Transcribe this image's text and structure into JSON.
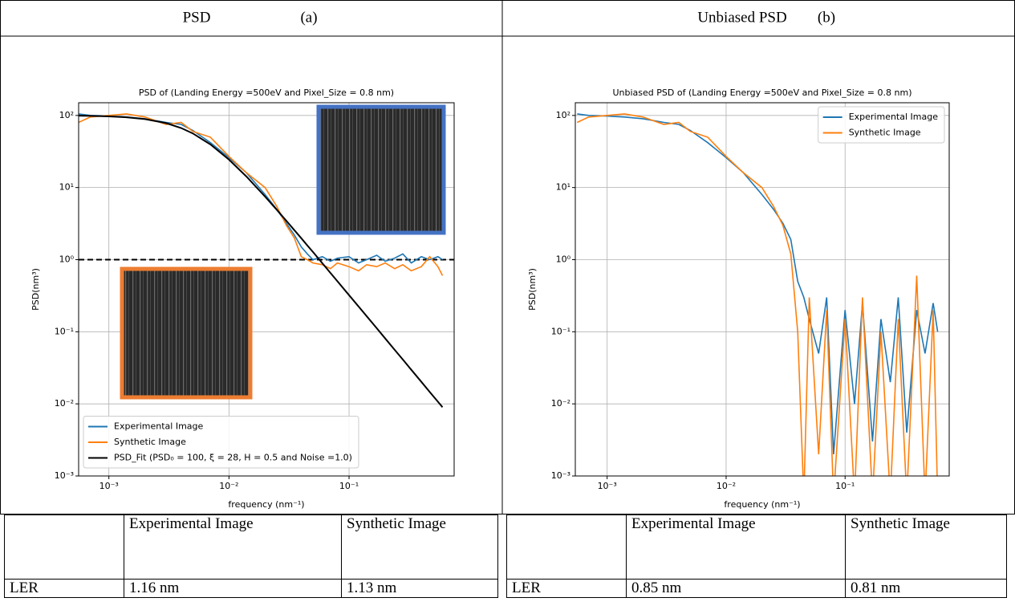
{
  "headers": [
    {
      "title": "PSD",
      "label": "(a)"
    },
    {
      "title": "Unbiased PSD",
      "label": "(b)"
    }
  ],
  "chart_data": [
    {
      "type": "line",
      "title": "PSD of (Landing Energy =500eV and Pixel_Size = 0.8 nm)",
      "x_label": "frequency (nm⁻¹)",
      "y_label": "PSD(nm³)",
      "xscale": "log",
      "yscale": "log",
      "grid": true,
      "legend": "lower left",
      "xlim": [
        0.00056,
        0.75
      ],
      "ylim": [
        0.001,
        150
      ],
      "xticks": [
        {
          "value": 0.001,
          "label": "10⁻³"
        },
        {
          "value": 0.01,
          "label": "10⁻²"
        },
        {
          "value": 0.1,
          "label": "10⁻¹"
        }
      ],
      "yticks": [
        {
          "value": 0.001,
          "label": "10⁻³"
        },
        {
          "value": 0.01,
          "label": "10⁻²"
        },
        {
          "value": 0.1,
          "label": "10⁻¹"
        },
        {
          "value": 1,
          "label": "10⁰"
        },
        {
          "value": 10,
          "label": "10¹"
        },
        {
          "value": 100,
          "label": "10²"
        }
      ],
      "reference_line": 1,
      "x": [
        0.00056,
        0.0007,
        0.001,
        0.0014,
        0.002,
        0.003,
        0.004,
        0.005,
        0.007,
        0.01,
        0.014,
        0.02,
        0.025,
        0.03,
        0.035,
        0.04,
        0.045,
        0.05,
        0.06,
        0.07,
        0.08,
        0.1,
        0.12,
        0.14,
        0.17,
        0.2,
        0.24,
        0.28,
        0.33,
        0.4,
        0.47,
        0.55,
        0.6
      ],
      "series": [
        {
          "name": "Experimental Image",
          "color": "#1f77b4",
          "values": [
            105,
            100,
            98,
            95,
            90,
            80,
            75,
            62,
            42,
            26,
            16,
            8,
            5,
            3.2,
            2.2,
            1.5,
            1.2,
            1.0,
            1.1,
            0.95,
            1.05,
            1.1,
            0.9,
            1.0,
            1.15,
            0.95,
            1.05,
            1.2,
            0.9,
            1.1,
            1.0,
            1.1,
            1.0
          ]
        },
        {
          "name": "Synthetic Image",
          "color": "#ff7f0e",
          "values": [
            80,
            95,
            100,
            105,
            95,
            75,
            80,
            60,
            50,
            27,
            16,
            10,
            5.5,
            3.0,
            2.0,
            1.1,
            1.0,
            0.9,
            0.85,
            0.75,
            0.9,
            0.8,
            0.7,
            0.85,
            0.8,
            0.9,
            0.75,
            0.85,
            0.7,
            0.8,
            1.1,
            0.8,
            0.6
          ]
        },
        {
          "name": "PSD_Fit (PSD₀ = 100, ξ = 28, H = 0.5 and Noise =1.0)",
          "color": "#000000",
          "values": [
            99.2,
            98.5,
            97.0,
            94.3,
            89.0,
            78.2,
            66.9,
            56.4,
            39.7,
            24.4,
            14.2,
            7.47,
            4.92,
            3.47,
            2.57,
            1.98,
            1.57,
            1.28,
            0.89,
            0.655,
            0.502,
            0.322,
            0.224,
            0.165,
            0.112,
            0.0807,
            0.0561,
            0.0412,
            0.0297,
            0.0202,
            0.0146,
            0.0107,
            0.009
          ]
        }
      ]
    },
    {
      "type": "line",
      "title": "Unbiased PSD of (Landing Energy =500eV and Pixel_Size = 0.8 nm)",
      "x_label": "frequency (nm⁻¹)",
      "y_label": "PSD(nm³)",
      "xscale": "log",
      "yscale": "log",
      "grid": true,
      "legend": "upper right",
      "xlim": [
        0.00054,
        0.75
      ],
      "ylim": [
        0.001,
        150
      ],
      "xticks": [
        {
          "value": 0.001,
          "label": "10⁻³"
        },
        {
          "value": 0.01,
          "label": "10⁻²"
        },
        {
          "value": 0.1,
          "label": "10⁻¹"
        }
      ],
      "yticks": [
        {
          "value": 0.001,
          "label": "10⁻³"
        },
        {
          "value": 0.01,
          "label": "10⁻²"
        },
        {
          "value": 0.1,
          "label": "10⁻¹"
        },
        {
          "value": 1,
          "label": "10⁰"
        },
        {
          "value": 10,
          "label": "10¹"
        },
        {
          "value": 100,
          "label": "10²"
        }
      ],
      "x": [
        0.00056,
        0.0007,
        0.001,
        0.0014,
        0.002,
        0.003,
        0.004,
        0.005,
        0.007,
        0.01,
        0.014,
        0.02,
        0.025,
        0.03,
        0.035,
        0.04,
        0.045,
        0.05,
        0.06,
        0.07,
        0.08,
        0.1,
        0.12,
        0.14,
        0.17,
        0.2,
        0.24,
        0.28,
        0.33,
        0.4,
        0.47,
        0.55,
        0.6
      ],
      "series": [
        {
          "name": "Experimental Image",
          "color": "#1f77b4",
          "values": [
            105,
            100,
            98,
            95,
            90,
            80,
            75,
            62,
            42,
            26,
            16,
            8,
            5,
            3.2,
            1.9,
            0.5,
            0.3,
            0.15,
            0.05,
            0.3,
            0.002,
            0.2,
            0.01,
            0.25,
            0.003,
            0.15,
            0.02,
            0.3,
            0.004,
            0.2,
            0.05,
            0.25,
            0.1
          ]
        },
        {
          "name": "Synthetic Image",
          "color": "#ff7f0e",
          "values": [
            80,
            95,
            100,
            105,
            95,
            75,
            80,
            60,
            50,
            27,
            16,
            10,
            5.5,
            3.0,
            1.2,
            0.1,
            0.0005,
            0.3,
            0.002,
            0.2,
            0.0005,
            0.15,
            0.0005,
            0.3,
            0.0005,
            0.1,
            0.0005,
            0.15,
            0.0005,
            0.6,
            0.0005,
            0.2,
            0.0005
          ]
        }
      ]
    }
  ],
  "tables": [
    {
      "header": [
        "Experimental Image",
        "Synthetic Image"
      ],
      "rows": [
        [
          "LER",
          "1.16 nm",
          "1.13 nm"
        ]
      ]
    },
    {
      "header": [
        "Experimental Image",
        "Synthetic Image"
      ],
      "rows": [
        [
          "LER",
          "0.85 nm",
          "0.81 nm"
        ]
      ]
    }
  ]
}
